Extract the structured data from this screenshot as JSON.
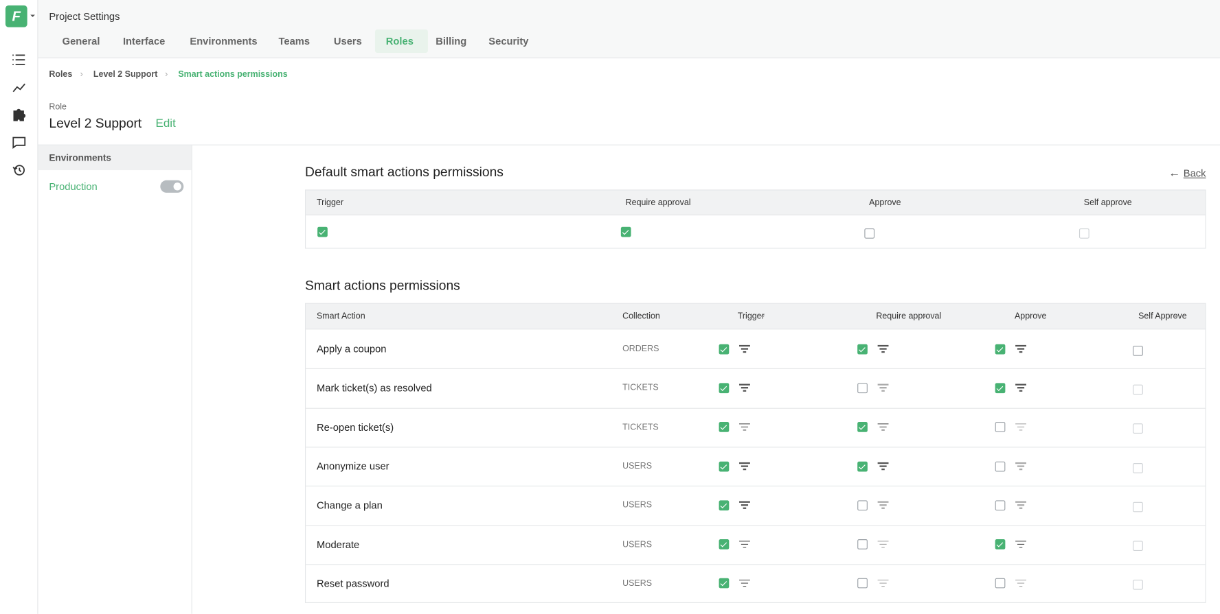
{
  "header": {
    "title": "Project Settings",
    "tabs": [
      "General",
      "Interface",
      "Environments",
      "Teams",
      "Users",
      "Roles",
      "Billing",
      "Security"
    ],
    "active_tab": "Roles"
  },
  "breadcrumb": [
    "Roles",
    "Level 2 Support",
    "Smart actions permissions"
  ],
  "role": {
    "label": "Role",
    "name": "Level 2 Support",
    "edit": "Edit"
  },
  "sidebar": {
    "heading": "Environments",
    "environments": [
      {
        "name": "Production",
        "enabled": true
      }
    ]
  },
  "back": "Back",
  "default_permissions": {
    "title": "Default smart actions permissions",
    "headers": [
      "Trigger",
      "Require approval",
      "Approve",
      "Self approve"
    ],
    "values": [
      true,
      true,
      false,
      false
    ]
  },
  "smart_actions": {
    "title": "Smart actions permissions",
    "headers": [
      "Smart Action",
      "Collection",
      "Trigger",
      "Require approval",
      "Approve",
      "Self Approve"
    ],
    "rows": [
      {
        "name": "Apply a coupon",
        "collection": "ORDERS",
        "values": [
          true,
          true,
          true,
          false
        ]
      },
      {
        "name": "Mark ticket(s) as resolved",
        "collection": "TICKETS",
        "values": [
          true,
          false,
          true,
          false
        ]
      },
      {
        "name": "Re-open ticket(s)",
        "collection": "TICKETS",
        "values": [
          true,
          true,
          false,
          false
        ]
      },
      {
        "name": "Anonymize user",
        "collection": "USERS",
        "values": [
          true,
          true,
          false,
          false
        ]
      },
      {
        "name": "Change a plan",
        "collection": "USERS",
        "values": [
          true,
          false,
          false,
          false
        ]
      },
      {
        "name": "Moderate",
        "collection": "USERS",
        "values": [
          true,
          false,
          true,
          false
        ]
      },
      {
        "name": "Reset password",
        "collection": "USERS",
        "values": [
          true,
          false,
          false,
          false
        ]
      }
    ]
  }
}
